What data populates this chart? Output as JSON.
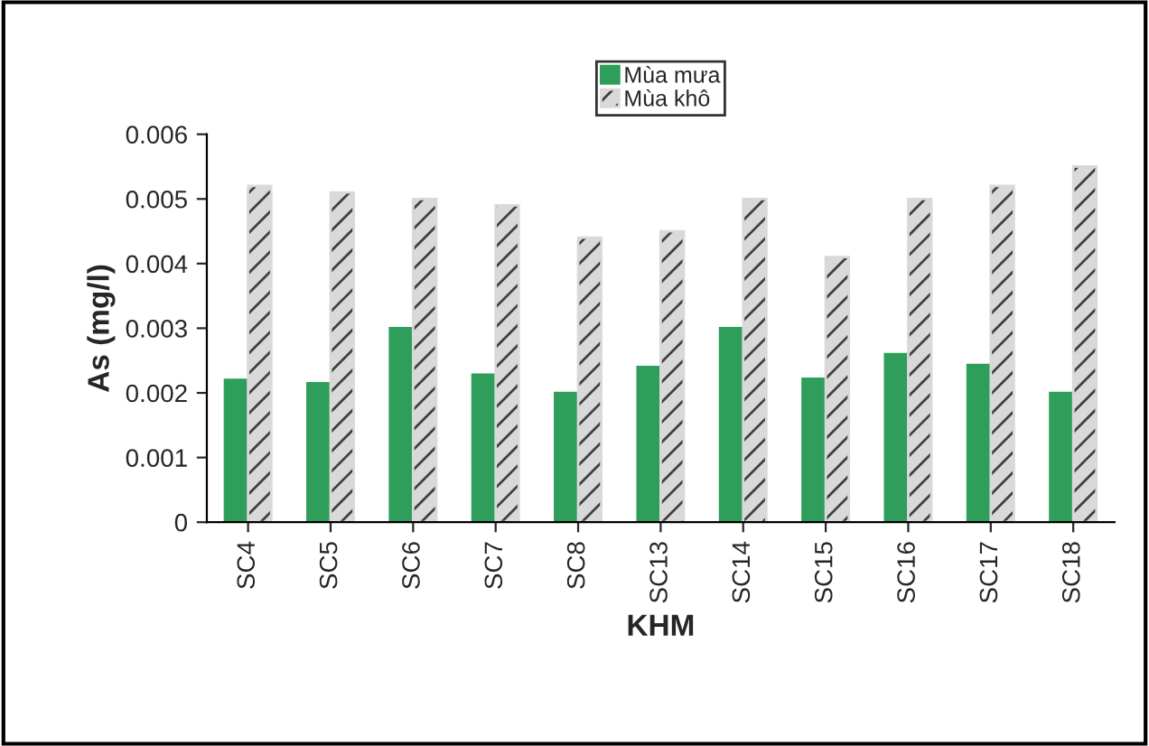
{
  "chart_data": {
    "type": "bar",
    "xlabel": "KHM",
    "ylabel": "As (mg/l)",
    "categories": [
      "SC4",
      "SC5",
      "SC6",
      "SC7",
      "SC8",
      "SC13",
      "SC14",
      "SC15",
      "SC16",
      "SC17",
      "SC18"
    ],
    "series": [
      {
        "name": "Mùa mưa",
        "color": "#2e9e5a",
        "values": [
          0.0022,
          0.00215,
          0.003,
          0.00228,
          0.002,
          0.0024,
          0.003,
          0.00222,
          0.0026,
          0.00243,
          0.002
        ]
      },
      {
        "name": "Mùa khô",
        "color": "#d9d9d9",
        "values": [
          0.0052,
          0.0051,
          0.005,
          0.0049,
          0.0044,
          0.0045,
          0.005,
          0.0041,
          0.005,
          0.0052,
          0.0055
        ]
      }
    ],
    "ylim": [
      0,
      0.006
    ],
    "yticks": [
      0,
      0.001,
      0.002,
      0.003,
      0.004,
      0.005,
      0.006
    ],
    "grid": false,
    "legend": "top"
  }
}
